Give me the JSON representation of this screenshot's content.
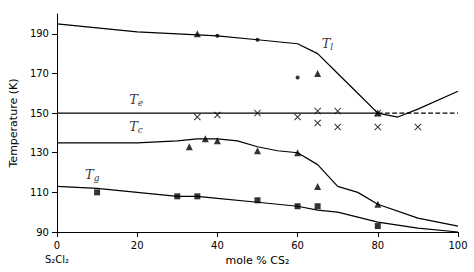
{
  "chart_data": {
    "type": "line",
    "title": "",
    "xlabel": "mole % CS₂",
    "ylabel": "Temperature (K)",
    "xlim": [
      0,
      100
    ],
    "ylim": [
      90,
      200
    ],
    "xticks": [
      0,
      20,
      40,
      60,
      80,
      100
    ],
    "yticks": [
      90,
      110,
      130,
      150,
      170,
      190
    ],
    "grid": false,
    "color": "#000000",
    "series": [
      {
        "type": "line",
        "line_style": "solid",
        "x": [
          0,
          10,
          20,
          30,
          35,
          40,
          50,
          60,
          65,
          70,
          75,
          80,
          85,
          90,
          100
        ],
        "values": [
          195,
          193,
          191,
          190,
          189.5,
          189,
          187,
          185,
          180,
          170,
          160,
          150,
          148,
          152,
          161
        ]
      },
      {
        "type": "scatter",
        "marker": "triangle",
        "x": [
          35,
          65,
          80
        ],
        "values": [
          190,
          170,
          150
        ]
      },
      {
        "type": "scatter",
        "marker": "dot",
        "x": [
          40,
          50,
          60
        ],
        "values": [
          189,
          187,
          168
        ]
      },
      {
        "type": "line",
        "line_style": "solid",
        "x": [
          0,
          80
        ],
        "values": [
          150,
          150
        ]
      },
      {
        "type": "line",
        "line_style": "dashed",
        "x": [
          80,
          100
        ],
        "values": [
          150,
          150
        ]
      },
      {
        "type": "scatter",
        "marker": "x",
        "x": [
          35,
          40,
          50,
          60,
          65,
          70,
          80
        ],
        "values": [
          148,
          149,
          150,
          148,
          151,
          151,
          150
        ]
      },
      {
        "type": "scatter",
        "marker": "x",
        "x": [
          65,
          70,
          80,
          90
        ],
        "values": [
          145,
          143,
          143,
          143
        ]
      },
      {
        "type": "line",
        "line_style": "solid",
        "x": [
          0,
          10,
          20,
          30,
          35,
          40,
          45,
          50,
          55,
          60,
          65,
          70,
          75,
          80,
          90,
          100
        ],
        "values": [
          135,
          135,
          135,
          136,
          137,
          137,
          136,
          133,
          131,
          130,
          124,
          113,
          110,
          104,
          97,
          93
        ]
      },
      {
        "type": "scatter",
        "marker": "triangle",
        "x": [
          33,
          37,
          40,
          50,
          60,
          65,
          80
        ],
        "values": [
          133,
          137,
          136,
          131,
          130,
          113,
          104
        ]
      },
      {
        "type": "line",
        "line_style": "solid",
        "x": [
          0,
          10,
          20,
          30,
          35,
          40,
          50,
          60,
          65,
          70,
          80,
          90,
          100
        ],
        "values": [
          113,
          112,
          110,
          108,
          108,
          107,
          105,
          103,
          101,
          100,
          95,
          92,
          90
        ]
      },
      {
        "type": "scatter",
        "marker": "square",
        "x": [
          10,
          30,
          35,
          50,
          60,
          65,
          80
        ],
        "values": [
          110,
          108,
          108,
          106,
          103,
          103,
          93
        ]
      }
    ],
    "annotations": [
      {
        "text": "Tl",
        "x": 66,
        "y": 185
      },
      {
        "text": "Te",
        "x": 18,
        "y": 157
      },
      {
        "text": "Tc",
        "x": 18,
        "y": 143
      },
      {
        "text": "Tg",
        "x": 7,
        "y": 119
      },
      {
        "text": "S₂Cl₂",
        "x": 0
      }
    ]
  }
}
